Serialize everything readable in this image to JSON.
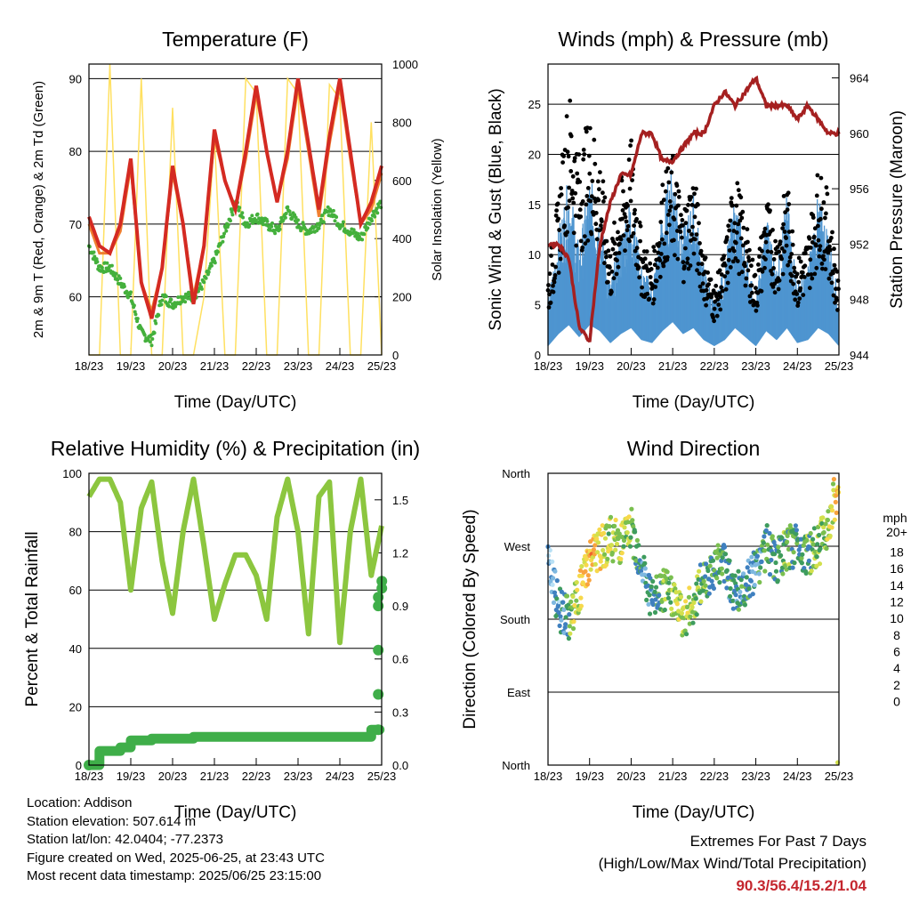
{
  "xticks": [
    "18/23",
    "19/23",
    "20/23",
    "21/23",
    "22/23",
    "23/23",
    "24/23",
    "25/23"
  ],
  "info": {
    "location": "Location: Addison",
    "elevation": "Station elevation: 507.614 m",
    "latlon": "Station lat/lon: 42.0404; -77.2373",
    "created": "Figure created on Wed, 2025-06-25, at 23:43 UTC",
    "timestamp": "Most recent data timestamp: 2025/06/25 23:15:00"
  },
  "extremes": {
    "title": "Extremes For Past 7 Days",
    "subtitle": "(High/Low/Max Wind/Total Precipitation)",
    "values": "90.3/56.4/15.2/1.04"
  },
  "chart_data": [
    {
      "type": "line",
      "title": "Temperature (F)",
      "xlabel": "Time (Day/UTC)",
      "ylabel": "2m & 9m T (Red, Orange) & 2m Td (Green)",
      "ylabel_right": "Solar Insolation (Yellow)",
      "ylim": [
        52,
        92
      ],
      "ylim_right": [
        0,
        1000
      ],
      "yticks": [
        "60",
        "70",
        "80",
        "90"
      ],
      "yticks_right": [
        "0",
        "200",
        "400",
        "600",
        "800",
        "1000"
      ],
      "x": [
        0,
        0.25,
        0.5,
        0.75,
        1,
        1.25,
        1.5,
        1.75,
        2,
        2.25,
        2.5,
        2.75,
        3,
        3.25,
        3.5,
        3.75,
        4,
        4.25,
        4.5,
        4.75,
        5,
        5.25,
        5.5,
        5.75,
        6,
        6.25,
        6.5,
        6.75,
        7
      ],
      "series": [
        {
          "color": "#d42a22",
          "values": [
            71,
            67,
            66,
            70,
            79,
            62,
            57,
            64,
            78,
            70,
            59,
            67,
            83,
            76,
            72,
            80,
            89,
            80,
            73,
            80,
            90,
            81,
            72,
            82,
            90,
            80,
            70,
            73,
            78
          ]
        },
        {
          "color": "#f08030",
          "values": [
            70,
            66,
            66,
            69,
            78,
            62,
            58,
            64,
            77,
            70,
            60,
            67,
            82,
            76,
            72,
            79,
            88,
            80,
            73,
            79,
            89,
            80,
            71,
            81,
            89,
            79,
            70,
            72,
            77
          ]
        },
        {
          "color": "#44b03c",
          "values": [
            67,
            64,
            64,
            62,
            60,
            55,
            54,
            60,
            59,
            60,
            60,
            62,
            65,
            69,
            73,
            70,
            71,
            70,
            69,
            72,
            70,
            69,
            70,
            72,
            70,
            69,
            68,
            71,
            73
          ]
        },
        {
          "color": "#ffe060",
          "axis": "right",
          "values": [
            0,
            0,
            1000,
            0,
            0,
            950,
            0,
            0,
            850,
            0,
            0,
            200,
            750,
            0,
            0,
            950,
            900,
            0,
            0,
            950,
            900,
            0,
            0,
            930,
            880,
            0,
            0,
            800,
            0
          ]
        }
      ]
    },
    {
      "type": "scatter",
      "title": "Winds (mph) & Pressure (mb)",
      "xlabel": "Time (Day/UTC)",
      "ylabel": "Sonic Wind & Gust (Blue, Black)",
      "ylabel_right": "Station Pressure (Maroon)",
      "ylim": [
        0,
        29
      ],
      "ylim_right": [
        944,
        965
      ],
      "yticks": [
        "0",
        "5",
        "10",
        "15",
        "20",
        "25"
      ],
      "yticks_right": [
        "944",
        "948",
        "952",
        "956",
        "960",
        "964"
      ],
      "x": [
        0,
        0.25,
        0.5,
        0.75,
        1,
        1.25,
        1.5,
        1.75,
        2,
        2.25,
        2.5,
        2.75,
        3,
        3.25,
        3.5,
        3.75,
        4,
        4.25,
        4.5,
        4.75,
        5,
        5.25,
        5.5,
        5.75,
        6,
        6.25,
        6.5,
        6.75,
        7
      ],
      "series": [
        {
          "name": "wind",
          "color": "#4e95d0",
          "values": [
            3,
            7,
            10,
            6,
            10,
            8,
            4,
            7,
            9,
            5,
            4,
            8,
            11,
            7,
            9,
            5,
            3,
            5,
            9,
            6,
            3,
            8,
            5,
            9,
            4,
            5,
            9,
            7,
            3
          ]
        },
        {
          "name": "gust",
          "color": "#000000",
          "values": [
            6,
            12,
            20,
            15,
            18,
            15,
            8,
            13,
            16,
            9,
            7,
            13,
            15,
            11,
            14,
            8,
            5,
            8,
            14,
            10,
            6,
            12,
            9,
            13,
            7,
            9,
            14,
            12,
            5
          ]
        },
        {
          "name": "pressure",
          "color": "#a52020",
          "axis": "right",
          "values": [
            952,
            952,
            951,
            946,
            945,
            952,
            955,
            957,
            957,
            960,
            960,
            958,
            958,
            959,
            960,
            960,
            962,
            963,
            962,
            963,
            964,
            962,
            962,
            962,
            961,
            962,
            961,
            960,
            960
          ]
        }
      ]
    },
    {
      "type": "line",
      "title": "Relative Humidity (%) & Precipitation (in)",
      "xlabel": "Time (Day/UTC)",
      "ylabel": "Percent & Total Rainfall",
      "ylim": [
        0,
        100
      ],
      "ylim_right": [
        0,
        1.65
      ],
      "yticks": [
        "0",
        "20",
        "40",
        "60",
        "80",
        "100"
      ],
      "yticks_right": [
        "0.0",
        "0.3",
        "0.6",
        "0.9",
        "1.2",
        "1.5"
      ],
      "x": [
        0,
        0.25,
        0.5,
        0.75,
        1,
        1.25,
        1.5,
        1.75,
        2,
        2.25,
        2.5,
        2.75,
        3,
        3.25,
        3.5,
        3.75,
        4,
        4.25,
        4.5,
        4.75,
        5,
        5.25,
        5.5,
        5.75,
        6,
        6.25,
        6.5,
        6.75,
        7
      ],
      "series": [
        {
          "name": "rh",
          "color": "#8cc63f",
          "values": [
            92,
            98,
            98,
            90,
            60,
            88,
            97,
            70,
            52,
            80,
            98,
            75,
            50,
            62,
            72,
            72,
            65,
            50,
            85,
            98,
            80,
            45,
            92,
            97,
            42,
            80,
            98,
            65,
            82
          ]
        },
        {
          "name": "precip",
          "color": "#3fae49",
          "axis": "right",
          "values": [
            0,
            0.08,
            0.08,
            0.1,
            0.14,
            0.14,
            0.15,
            0.15,
            0.15,
            0.15,
            0.16,
            0.16,
            0.16,
            0.16,
            0.16,
            0.16,
            0.16,
            0.16,
            0.16,
            0.16,
            0.16,
            0.16,
            0.16,
            0.16,
            0.16,
            0.16,
            0.16,
            0.2,
            1.04
          ]
        }
      ]
    },
    {
      "type": "scatter",
      "title": "Wind Direction",
      "xlabel": "Time (Day/UTC)",
      "ylabel": "Direction (Colored By Speed)",
      "yticks": [
        "North",
        "East",
        "South",
        "West",
        "North"
      ],
      "colorbar": {
        "title": "mph",
        "labels": [
          "20+",
          "18",
          "16",
          "14",
          "12",
          "10",
          "8",
          "6",
          "4",
          "2",
          "0"
        ],
        "colors": [
          "#9b1b1e",
          "#c62127",
          "#e0382a",
          "#f0632b",
          "#f9a33e",
          "#f7d84b",
          "#d2e04c",
          "#7abf4f",
          "#3e9c5e",
          "#3f80bf",
          "#7eb8e0",
          "#b8e0f5"
        ]
      },
      "x": [
        0,
        0.25,
        0.5,
        0.75,
        1,
        1.25,
        1.5,
        1.75,
        2,
        2.25,
        2.5,
        2.75,
        3,
        3.25,
        3.5,
        3.75,
        4,
        4.25,
        4.5,
        4.75,
        5,
        5.25,
        5.5,
        5.75,
        6,
        6.25,
        6.5,
        6.75,
        7
      ],
      "series": [
        {
          "name": "direction",
          "values": [
            250,
            195,
            180,
            210,
            255,
            265,
            280,
            275,
            290,
            250,
            200,
            215,
            210,
            180,
            200,
            230,
            245,
            250,
            210,
            220,
            240,
            270,
            250,
            265,
            275,
            260,
            270,
            300,
            350
          ],
          "speed": [
            2,
            3,
            6,
            10,
            12,
            11,
            8,
            9,
            8,
            4,
            4,
            6,
            8,
            9,
            8,
            6,
            5,
            6,
            4,
            5,
            4,
            6,
            5,
            7,
            5,
            6,
            7,
            8,
            12
          ]
        }
      ]
    }
  ]
}
